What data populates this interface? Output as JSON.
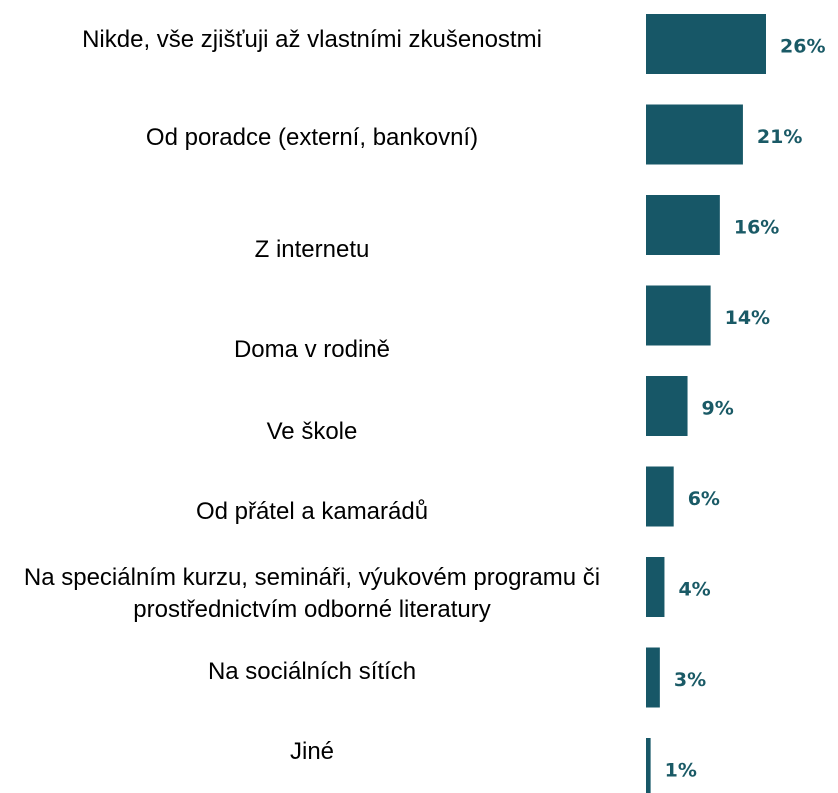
{
  "chart_data": {
    "type": "bar",
    "orientation": "horizontal",
    "categories": [
      "Nikde, vše zjišťuji až vlastními zkušenostmi",
      "Od poradce (externí, bankovní)",
      "Z internetu",
      "Doma v rodině",
      "Ve škole",
      "Od přátel a kamarádů",
      "Na speciálním kurzu, semináři, výukovém programu či prostřednictvím odborné literatury",
      "Na sociálních sítích",
      "Jiné"
    ],
    "values": [
      26,
      21,
      16,
      14,
      9,
      6,
      4,
      3,
      1
    ],
    "value_labels": [
      "26%",
      "21%",
      "16%",
      "14%",
      "9%",
      "6%",
      "4%",
      "3%",
      "1%"
    ],
    "color": "#175767"
  }
}
